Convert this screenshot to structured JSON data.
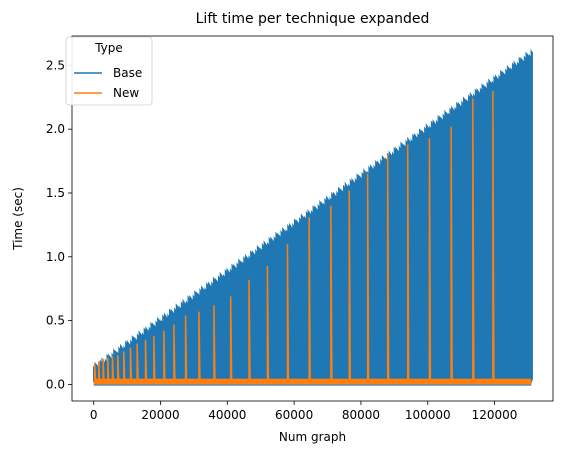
{
  "chart_data": {
    "type": "line",
    "title": "Lift time per technique expanded",
    "xlabel": "Num graph",
    "ylabel": "Time (sec)",
    "xlim": [
      -6500,
      137500
    ],
    "ylim": [
      -0.13,
      2.73
    ],
    "xticks": [
      0,
      20000,
      40000,
      60000,
      80000,
      100000,
      120000
    ],
    "yticks": [
      0.0,
      0.5,
      1.0,
      1.5,
      2.0,
      2.5
    ],
    "xtick_labels": [
      "0",
      "20000",
      "40000",
      "60000",
      "80000",
      "100000",
      "120000"
    ],
    "ytick_labels": [
      "0.0",
      "0.5",
      "1.0",
      "1.5",
      "2.0",
      "2.5"
    ],
    "grid": false,
    "legend": {
      "title": "Type",
      "placement": "top-left"
    },
    "series": [
      {
        "name": "Base",
        "color": "#1f77b4",
        "spike_x_range": [
          0,
          131000
        ],
        "spike_count": 260,
        "spike_peak_start": 0.13,
        "spike_peak_end": 2.6,
        "baseline": 0.02
      },
      {
        "name": "New",
        "color": "#ff7f0e",
        "spikes": [
          {
            "x": 300,
            "y": 0.16
          },
          {
            "x": 1500,
            "y": 0.18
          },
          {
            "x": 2800,
            "y": 0.2
          },
          {
            "x": 4200,
            "y": 0.21
          },
          {
            "x": 5600,
            "y": 0.22
          },
          {
            "x": 7200,
            "y": 0.23
          },
          {
            "x": 9000,
            "y": 0.26
          },
          {
            "x": 11000,
            "y": 0.29
          },
          {
            "x": 13000,
            "y": 0.32
          },
          {
            "x": 15500,
            "y": 0.35
          },
          {
            "x": 18000,
            "y": 0.38
          },
          {
            "x": 21000,
            "y": 0.42
          },
          {
            "x": 24000,
            "y": 0.47
          },
          {
            "x": 27500,
            "y": 0.54
          },
          {
            "x": 31500,
            "y": 0.57
          },
          {
            "x": 36000,
            "y": 0.62
          },
          {
            "x": 41000,
            "y": 0.69
          },
          {
            "x": 46500,
            "y": 0.82
          },
          {
            "x": 52000,
            "y": 0.93
          },
          {
            "x": 58000,
            "y": 1.1
          },
          {
            "x": 64500,
            "y": 1.31
          },
          {
            "x": 71000,
            "y": 1.4
          },
          {
            "x": 76500,
            "y": 1.52
          },
          {
            "x": 82000,
            "y": 1.65
          },
          {
            "x": 88000,
            "y": 1.8
          },
          {
            "x": 94000,
            "y": 1.88
          },
          {
            "x": 100500,
            "y": 1.93
          },
          {
            "x": 107000,
            "y": 2.02
          },
          {
            "x": 113500,
            "y": 2.24
          },
          {
            "x": 119500,
            "y": 2.3
          }
        ],
        "baseline": 0.02
      }
    ]
  }
}
